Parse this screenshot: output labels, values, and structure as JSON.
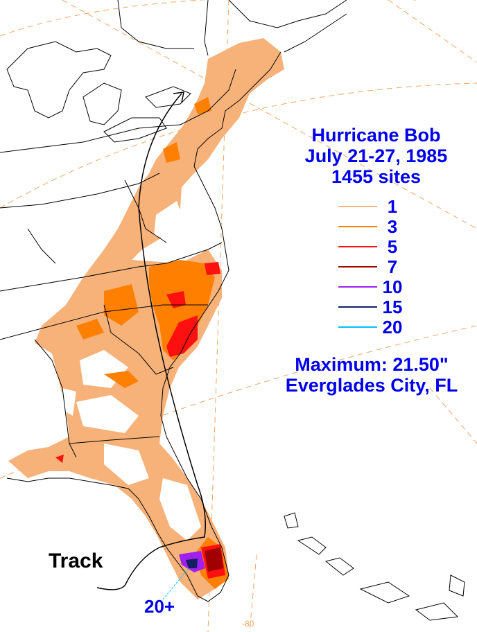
{
  "title": {
    "name": "Hurricane Bob",
    "dates": "July 21-27, 1985",
    "sites": "1455 sites"
  },
  "legend": [
    {
      "label": "1",
      "color": "#f7b27a"
    },
    {
      "label": "3",
      "color": "#ff8000"
    },
    {
      "label": "5",
      "color": "#ff1010"
    },
    {
      "label": "7",
      "color": "#a00000"
    },
    {
      "label": "10",
      "color": "#a020f0"
    },
    {
      "label": "15",
      "color": "#102060"
    },
    {
      "label": "20",
      "color": "#00c0ff"
    }
  ],
  "maximum": {
    "value_text": "Maximum:  21.50\"",
    "location": "Everglades City, FL"
  },
  "track_label": "Track",
  "pointer_label": "20+",
  "longitude_label": "-80",
  "colors": {
    "outline": "#000000",
    "grid": "#f4a460",
    "text": "#0000ee"
  }
}
